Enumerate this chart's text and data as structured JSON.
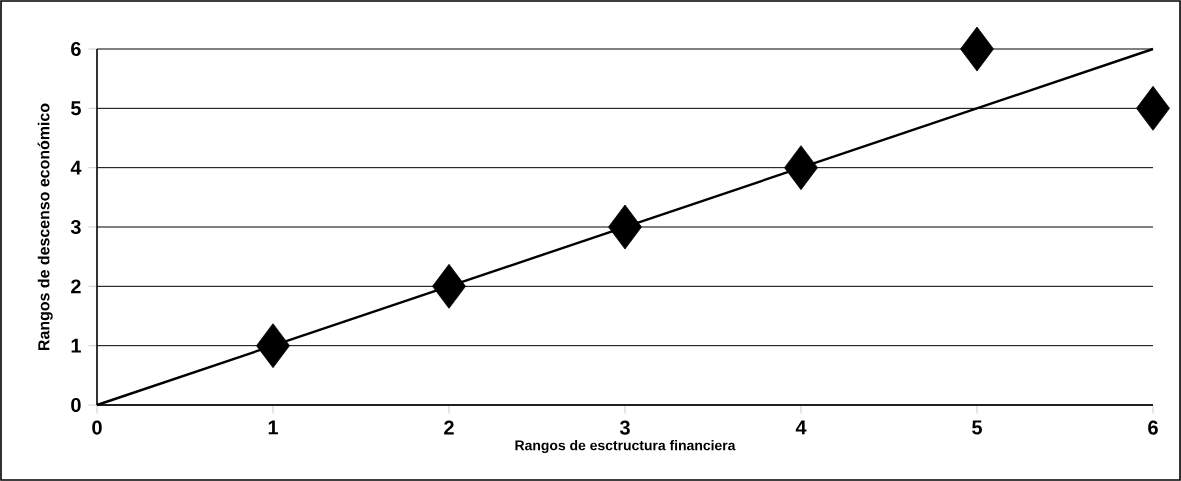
{
  "chart_data": {
    "type": "scatter",
    "xlabel": "Rangos de esctructura financiera",
    "ylabel": "Rangos de descenso económico",
    "x": [
      1,
      2,
      3,
      4,
      5,
      6
    ],
    "series": [
      {
        "color": "#000000",
        "marker": "diamond",
        "values": [
          1,
          2,
          3,
          4,
          6,
          5
        ]
      },
      {
        "type": "line",
        "color": "#000000",
        "marker": "none",
        "line_style": "solid",
        "x": [
          0,
          6
        ],
        "values": [
          0,
          6
        ]
      }
    ],
    "xlim": [
      0,
      6
    ],
    "ylim": [
      0,
      6
    ],
    "xticks": [
      0,
      1,
      2,
      3,
      4,
      5,
      6
    ],
    "yticks": [
      0,
      1,
      2,
      3,
      4,
      5,
      6
    ],
    "grid": "y"
  }
}
